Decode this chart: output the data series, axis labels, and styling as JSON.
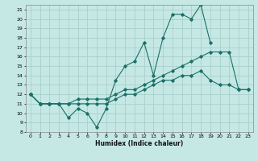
{
  "title": "",
  "xlabel": "Humidex (Indice chaleur)",
  "ylabel": "",
  "bg_color": "#c5e8e5",
  "grid_color": "#a8d0cc",
  "line_color": "#1a7068",
  "xlim": [
    -0.5,
    23.5
  ],
  "ylim": [
    8,
    21.5
  ],
  "xticks": [
    0,
    1,
    2,
    3,
    4,
    5,
    6,
    7,
    8,
    9,
    10,
    11,
    12,
    13,
    14,
    15,
    16,
    17,
    18,
    19,
    20,
    21,
    22,
    23
  ],
  "yticks": [
    8,
    9,
    10,
    11,
    12,
    13,
    14,
    15,
    16,
    17,
    18,
    19,
    20,
    21
  ],
  "line1_x": [
    0,
    1,
    2,
    3,
    4,
    5,
    6,
    7,
    8,
    9,
    10,
    11,
    12,
    13,
    14,
    15,
    16,
    17,
    18,
    19
  ],
  "line1_y": [
    12,
    11,
    11,
    11,
    9.5,
    10.5,
    10,
    8.5,
    10.5,
    13.5,
    15,
    15.5,
    17.5,
    14,
    18,
    20.5,
    20.5,
    20,
    21.5,
    17.5
  ],
  "line2_x": [
    0,
    1,
    2,
    3,
    4,
    5,
    6,
    7,
    8,
    9,
    10,
    11,
    12,
    13,
    14,
    15,
    16,
    17,
    18,
    19,
    20,
    21,
    22,
    23
  ],
  "line2_y": [
    12,
    11,
    11,
    11,
    11,
    11,
    11,
    11,
    11,
    11.5,
    12,
    12,
    12.5,
    13,
    13.5,
    13.5,
    14,
    14,
    14.5,
    13.5,
    13,
    13,
    12.5,
    12.5
  ],
  "line3_x": [
    0,
    1,
    2,
    3,
    4,
    5,
    6,
    7,
    8,
    9,
    10,
    11,
    12,
    13,
    14,
    15,
    16,
    17,
    18,
    19,
    20,
    21,
    22,
    23
  ],
  "line3_y": [
    12,
    11,
    11,
    11,
    11,
    11.5,
    11.5,
    11.5,
    11.5,
    12,
    12.5,
    12.5,
    13,
    13.5,
    14,
    14.5,
    15,
    15.5,
    16,
    16.5,
    16.5,
    16.5,
    12.5,
    12.5
  ]
}
